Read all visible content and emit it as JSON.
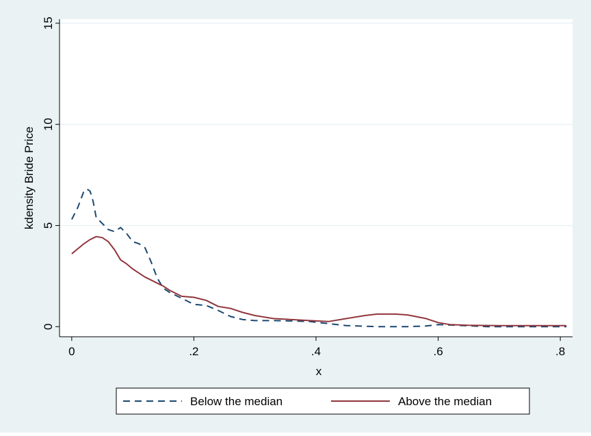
{
  "chart_data": {
    "type": "line",
    "title": "",
    "xlabel": "x",
    "ylabel": "kdensity Bride Price",
    "xlim": [
      -0.02,
      0.82
    ],
    "ylim": [
      -0.5,
      15.2
    ],
    "x_ticks": [
      {
        "value": 0,
        "label": "0"
      },
      {
        "value": 0.2,
        "label": ".2"
      },
      {
        "value": 0.4,
        "label": ".4"
      },
      {
        "value": 0.6,
        "label": ".6"
      },
      {
        "value": 0.8,
        "label": ".8"
      }
    ],
    "y_ticks": [
      {
        "value": 0,
        "label": "0"
      },
      {
        "value": 5,
        "label": "5"
      },
      {
        "value": 10,
        "label": "10"
      },
      {
        "value": 15,
        "label": "15"
      }
    ],
    "grid": "horizontal",
    "legend_position": "bottom",
    "colors": {
      "outer_background": "#eaf2f3",
      "plot_background": "#ffffff",
      "grid": "#eaf2f3",
      "axis": "#000000",
      "below": "#1a476f",
      "above": "#90353b"
    },
    "series": [
      {
        "name": "Below the median",
        "style": "dashed",
        "color": "#1a476f",
        "points": [
          [
            0.0,
            5.3
          ],
          [
            0.01,
            5.9
          ],
          [
            0.02,
            6.7
          ],
          [
            0.025,
            6.8
          ],
          [
            0.03,
            6.7
          ],
          [
            0.035,
            6.2
          ],
          [
            0.04,
            5.4
          ],
          [
            0.05,
            5.1
          ],
          [
            0.06,
            4.8
          ],
          [
            0.07,
            4.7
          ],
          [
            0.08,
            4.9
          ],
          [
            0.09,
            4.6
          ],
          [
            0.1,
            4.2
          ],
          [
            0.11,
            4.1
          ],
          [
            0.12,
            3.9
          ],
          [
            0.13,
            3.2
          ],
          [
            0.14,
            2.4
          ],
          [
            0.15,
            1.9
          ],
          [
            0.16,
            1.7
          ],
          [
            0.18,
            1.4
          ],
          [
            0.2,
            1.1
          ],
          [
            0.22,
            1.05
          ],
          [
            0.24,
            0.8
          ],
          [
            0.26,
            0.5
          ],
          [
            0.28,
            0.35
          ],
          [
            0.3,
            0.3
          ],
          [
            0.33,
            0.3
          ],
          [
            0.36,
            0.28
          ],
          [
            0.39,
            0.25
          ],
          [
            0.42,
            0.15
          ],
          [
            0.45,
            0.05
          ],
          [
            0.5,
            0.0
          ],
          [
            0.55,
            0.0
          ],
          [
            0.58,
            0.03
          ],
          [
            0.6,
            0.1
          ],
          [
            0.62,
            0.08
          ],
          [
            0.65,
            0.04
          ],
          [
            0.68,
            0.0
          ],
          [
            0.72,
            0.0
          ],
          [
            0.76,
            0.0
          ],
          [
            0.8,
            0.0
          ],
          [
            0.81,
            0.0
          ]
        ]
      },
      {
        "name": "Above the median",
        "style": "solid",
        "color": "#90353b",
        "points": [
          [
            0.0,
            3.6
          ],
          [
            0.01,
            3.85
          ],
          [
            0.02,
            4.1
          ],
          [
            0.03,
            4.3
          ],
          [
            0.04,
            4.45
          ],
          [
            0.05,
            4.4
          ],
          [
            0.06,
            4.2
          ],
          [
            0.07,
            3.8
          ],
          [
            0.08,
            3.3
          ],
          [
            0.09,
            3.1
          ],
          [
            0.1,
            2.85
          ],
          [
            0.11,
            2.65
          ],
          [
            0.12,
            2.45
          ],
          [
            0.13,
            2.3
          ],
          [
            0.14,
            2.15
          ],
          [
            0.15,
            2.0
          ],
          [
            0.16,
            1.8
          ],
          [
            0.18,
            1.5
          ],
          [
            0.2,
            1.45
          ],
          [
            0.22,
            1.3
          ],
          [
            0.24,
            1.0
          ],
          [
            0.26,
            0.9
          ],
          [
            0.28,
            0.7
          ],
          [
            0.3,
            0.55
          ],
          [
            0.33,
            0.4
          ],
          [
            0.36,
            0.35
          ],
          [
            0.39,
            0.3
          ],
          [
            0.42,
            0.25
          ],
          [
            0.45,
            0.4
          ],
          [
            0.48,
            0.55
          ],
          [
            0.5,
            0.62
          ],
          [
            0.53,
            0.62
          ],
          [
            0.55,
            0.58
          ],
          [
            0.58,
            0.4
          ],
          [
            0.6,
            0.2
          ],
          [
            0.62,
            0.1
          ],
          [
            0.65,
            0.07
          ],
          [
            0.7,
            0.05
          ],
          [
            0.75,
            0.05
          ],
          [
            0.8,
            0.05
          ],
          [
            0.81,
            0.05
          ]
        ]
      }
    ]
  }
}
